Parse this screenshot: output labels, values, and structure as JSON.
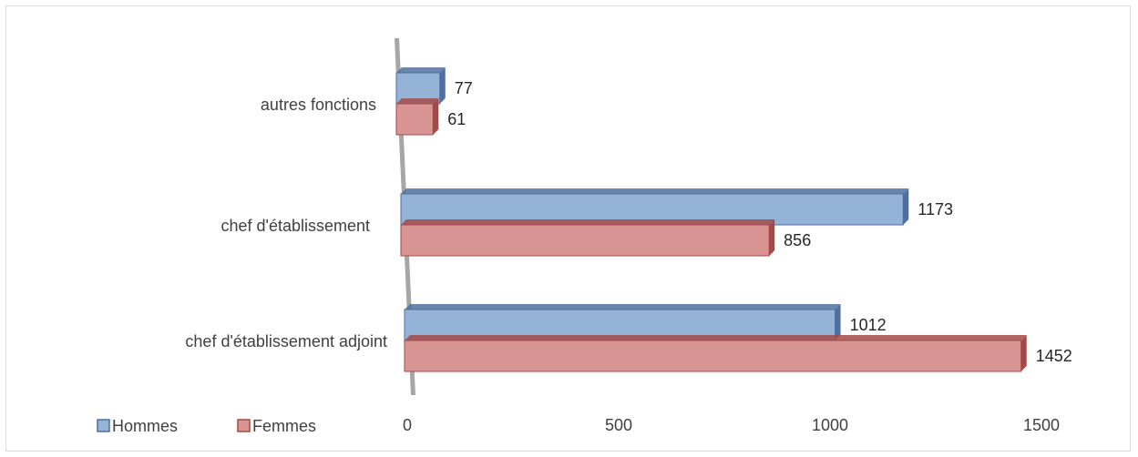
{
  "chart_data": {
    "type": "bar",
    "orientation": "horizontal",
    "categories": [
      "autres fonctions",
      "chef d'établissement",
      "chef d'établissement adjoint"
    ],
    "series": [
      {
        "name": "Hommes",
        "values": [
          77,
          1173,
          1012
        ],
        "color": "#95b3d7",
        "edge": "#4f6f9f"
      },
      {
        "name": "Femmes",
        "values": [
          61,
          856,
          1452
        ],
        "color": "#d99594",
        "edge": "#a34a48"
      }
    ],
    "xlim": [
      0,
      1500
    ],
    "ticks": [
      0,
      500,
      1000,
      1500
    ],
    "tick_labels": [
      "0",
      "500",
      "1000",
      "1500"
    ],
    "legend": "bottom-left",
    "grid": false,
    "title": "",
    "xlabel": "",
    "ylabel": ""
  }
}
